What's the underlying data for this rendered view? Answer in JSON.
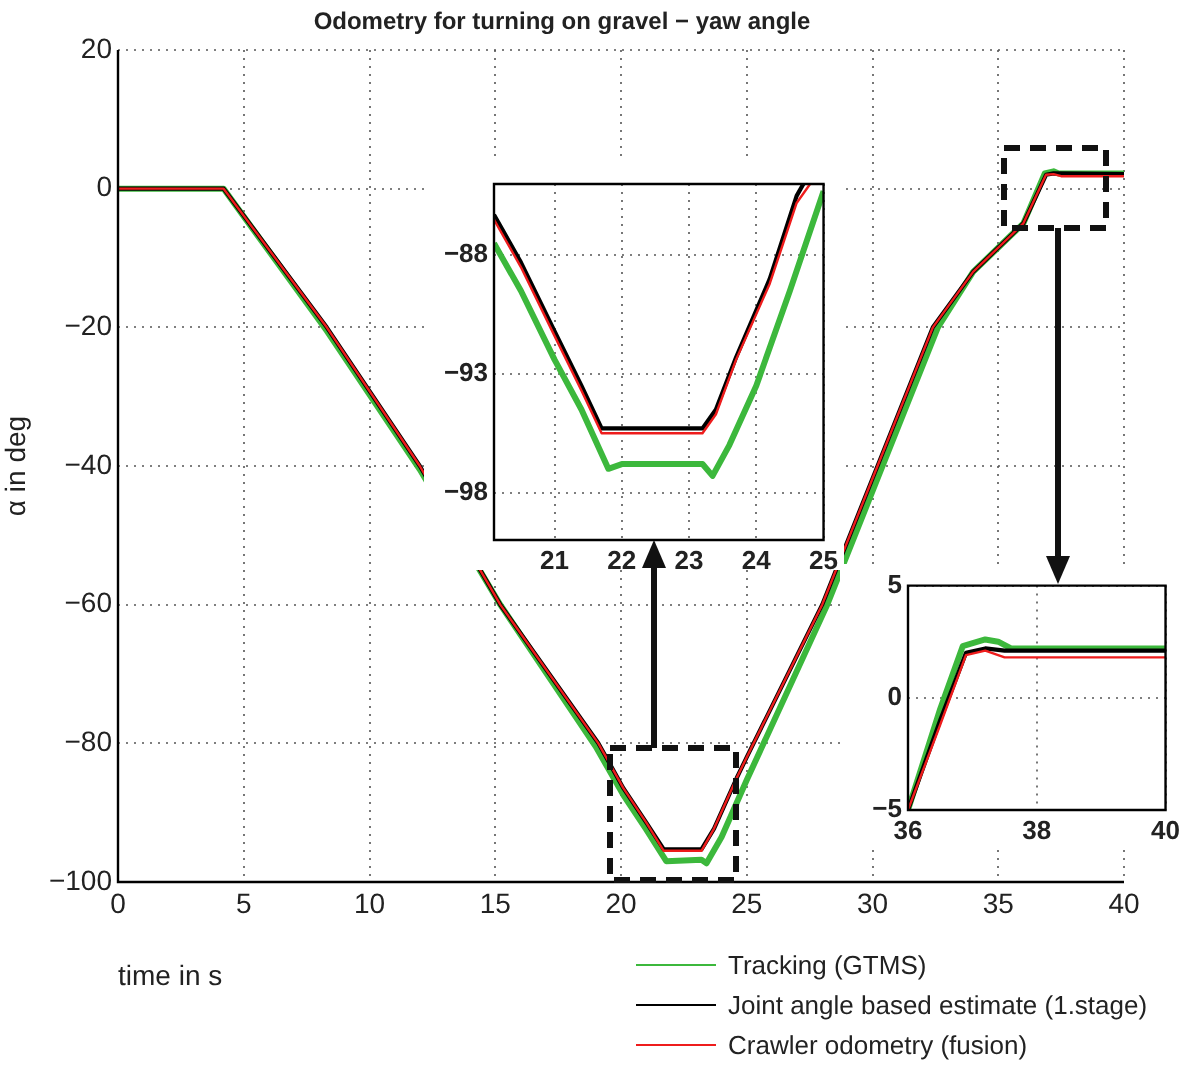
{
  "chart_data": [
    {
      "type": "line",
      "title": "Odometry for turning on gravel − yaw angle",
      "xlabel": "time in s",
      "ylabel": "α in deg",
      "xlim": [
        0,
        40
      ],
      "ylim": [
        -100,
        20
      ],
      "xticks": [
        0,
        5,
        10,
        15,
        20,
        25,
        30,
        35,
        40
      ],
      "yticks": [
        -100,
        -80,
        -60,
        -40,
        -20,
        0,
        20
      ],
      "grid": true,
      "legend": "bottom right",
      "series": [
        {
          "name": "Tracking (GTMS)",
          "color": "#3cb83c",
          "x": [
            0,
            4.2,
            8.3,
            12,
            15.2,
            19,
            20.1,
            21,
            21.8,
            23.2,
            23.4,
            24,
            25,
            28.2,
            30.4,
            32.6,
            34,
            36,
            36.85,
            37.2,
            37.4,
            40
          ],
          "values": [
            0,
            0,
            -20.5,
            -40.5,
            -60,
            -80.5,
            -87.5,
            -92.4,
            -97,
            -96.8,
            -97.3,
            -93.5,
            -85.3,
            -60,
            -40,
            -20,
            -12,
            -5,
            2.2,
            2.5,
            2.2,
            2.2
          ]
        },
        {
          "name": "Joint angle based estimate (1.stage)",
          "color": "#000000",
          "x": [
            0,
            4.2,
            8.3,
            12,
            15.2,
            19.1,
            20.1,
            21,
            21.7,
            23.2,
            23.7,
            24.6,
            25,
            28,
            30.2,
            32.4,
            34,
            36,
            36.9,
            37.2,
            40
          ],
          "values": [
            0,
            0,
            -20,
            -40,
            -60,
            -80,
            -86.5,
            -91.4,
            -95.3,
            -95.3,
            -92.3,
            -85,
            -82,
            -60,
            -40,
            -20,
            -12,
            -5,
            2,
            2.2,
            2.1
          ]
        },
        {
          "name": "Crawler odometry (fusion)",
          "color": "#ee1c1c",
          "x": [
            0,
            4.2,
            8.3,
            12,
            15.2,
            19.1,
            20.1,
            21,
            21.7,
            23.2,
            23.7,
            24.6,
            25,
            28,
            30.2,
            32.4,
            34,
            36,
            36.9,
            37.2,
            37.5,
            40
          ],
          "values": [
            0,
            0,
            -20,
            -40,
            -60,
            -80,
            -86.5,
            -91.4,
            -95.5,
            -95.5,
            -92.3,
            -85,
            -82,
            -60,
            -40,
            -20,
            -12,
            -5,
            2,
            2.1,
            1.8,
            1.8
          ]
        }
      ]
    },
    {
      "type": "line",
      "xlim": [
        20.1,
        25
      ],
      "ylim": [
        -100,
        -85
      ],
      "xticks": [
        21,
        22,
        23,
        24,
        25
      ],
      "yticks": [
        -98,
        -93,
        -88
      ],
      "grid": true,
      "series": [
        {
          "color": "#3cb83c",
          "x": [
            20.1,
            20.5,
            21,
            21.4,
            21.8,
            22,
            23.2,
            23.35,
            23.6,
            24,
            24.5,
            25
          ],
          "values": [
            -87.5,
            -89.5,
            -92.4,
            -94.5,
            -97,
            -96.8,
            -96.8,
            -97.3,
            -96,
            -93.5,
            -89.5,
            -85.3
          ]
        },
        {
          "color": "#000000",
          "x": [
            20.1,
            20.5,
            21,
            21.4,
            21.7,
            23.2,
            23.4,
            23.7,
            24.2,
            24.6,
            24.7
          ],
          "values": [
            -86.3,
            -88.3,
            -91.2,
            -93.5,
            -95.3,
            -95.3,
            -94.5,
            -92.3,
            -89,
            -85.5,
            -85
          ]
        },
        {
          "color": "#ee1c1c",
          "x": [
            20.1,
            20.5,
            21,
            21.4,
            21.7,
            23.2,
            23.4,
            23.7,
            24.2,
            24.6,
            24.8
          ],
          "values": [
            -86.5,
            -88.5,
            -91.4,
            -93.7,
            -95.5,
            -95.5,
            -94.7,
            -92.4,
            -89.2,
            -85.8,
            -85
          ]
        }
      ]
    },
    {
      "type": "line",
      "xlim": [
        36,
        40
      ],
      "ylim": [
        -5,
        5
      ],
      "xticks": [
        36,
        38,
        40
      ],
      "yticks": [
        -5,
        0,
        5
      ],
      "grid": true,
      "series": [
        {
          "color": "#3cb83c",
          "x": [
            36,
            36.5,
            36.85,
            37.2,
            37.4,
            37.6,
            40
          ],
          "values": [
            -5,
            -0.5,
            2.3,
            2.6,
            2.5,
            2.2,
            2.2
          ]
        },
        {
          "color": "#000000",
          "x": [
            36,
            36.5,
            36.9,
            37.2,
            37.5,
            40
          ],
          "values": [
            -5,
            -1,
            2.0,
            2.2,
            2.1,
            2.1
          ]
        },
        {
          "color": "#ee1c1c",
          "x": [
            36,
            36.5,
            36.9,
            37.2,
            37.5,
            40
          ],
          "values": [
            -5,
            -1.2,
            1.9,
            2.1,
            1.8,
            1.8
          ]
        }
      ]
    }
  ]
}
